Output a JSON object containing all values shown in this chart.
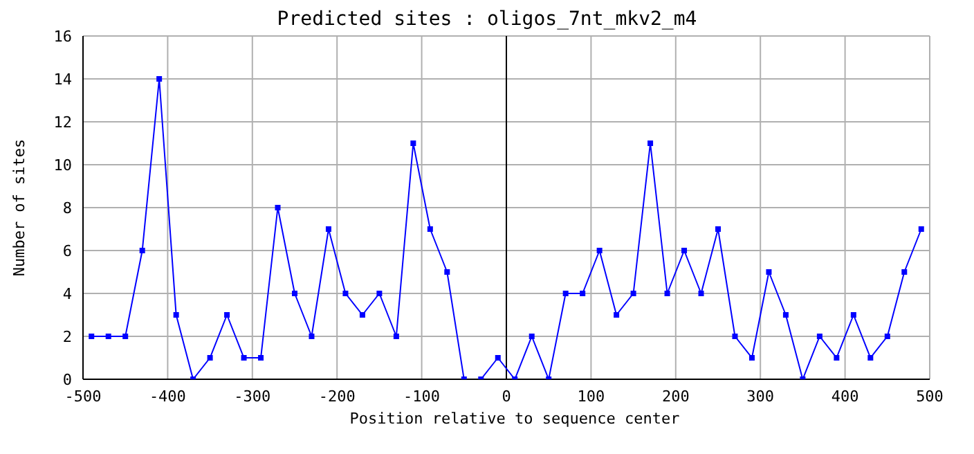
{
  "chart_data": {
    "type": "line",
    "title": "Predicted sites : oligos_7nt_mkv2_m4",
    "xlabel": "Position relative to sequence center",
    "ylabel": "Number of sites",
    "x": [
      -490,
      -470,
      -450,
      -430,
      -410,
      -390,
      -370,
      -350,
      -330,
      -310,
      -290,
      -270,
      -250,
      -230,
      -210,
      -190,
      -170,
      -150,
      -130,
      -110,
      -90,
      -70,
      -50,
      -30,
      -10,
      10,
      30,
      50,
      70,
      90,
      110,
      130,
      150,
      170,
      190,
      210,
      230,
      250,
      270,
      290,
      310,
      330,
      350,
      370,
      390,
      410,
      430,
      450,
      470,
      490
    ],
    "series": [
      {
        "color": "#0000ff",
        "values": [
          2,
          2,
          2,
          6,
          14,
          3,
          0,
          1,
          3,
          1,
          1,
          8,
          4,
          2,
          7,
          4,
          3,
          4,
          2,
          11,
          7,
          5,
          0,
          0,
          1,
          0,
          2,
          0,
          4,
          4,
          6,
          3,
          4,
          11,
          4,
          6,
          4,
          7,
          2,
          1,
          5,
          3,
          0,
          2,
          1,
          3,
          1,
          2,
          5,
          7
        ]
      }
    ],
    "xlim": [
      -500,
      500
    ],
    "xticks": [
      -500,
      -400,
      -300,
      -200,
      -100,
      0,
      100,
      200,
      300,
      400,
      500
    ],
    "ylim": [
      0,
      16
    ],
    "yticks": [
      0,
      2,
      4,
      6,
      8,
      10,
      12,
      14,
      16
    ],
    "grid": true,
    "marker": "square",
    "line_style": "solid",
    "ref_lines": [
      {
        "axis": "x",
        "value": 0,
        "color": "#000000"
      }
    ]
  }
}
